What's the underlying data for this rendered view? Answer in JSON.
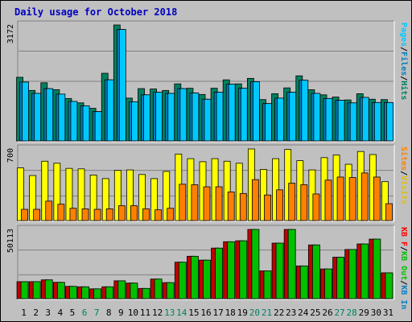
{
  "chart_data": [
    {
      "type": "bar",
      "title": "Daily usage for October 2018",
      "ylabel_parts": [
        {
          "text": "Pages",
          "color": "#00c8ff"
        },
        {
          "text": "/",
          "color": "#000000"
        },
        {
          "text": "Files",
          "color": "#0080c0"
        },
        {
          "text": "/",
          "color": "#000000"
        },
        {
          "text": "Hits",
          "color": "#008060"
        }
      ],
      "ytick": "3172",
      "ymax": 3172,
      "categories": [
        "1",
        "2",
        "3",
        "4",
        "5",
        "6",
        "7",
        "8",
        "9",
        "10",
        "11",
        "12",
        "13",
        "14",
        "15",
        "16",
        "17",
        "18",
        "19",
        "20",
        "21",
        "22",
        "23",
        "24",
        "25",
        "26",
        "27",
        "28",
        "29",
        "30",
        "31"
      ],
      "weekend_days": [
        "6",
        "7",
        "13",
        "14",
        "20",
        "21",
        "27",
        "28"
      ],
      "series": [
        {
          "name": "Hits",
          "color": "#008060",
          "values": [
            1740,
            1380,
            1590,
            1400,
            1160,
            1040,
            890,
            1850,
            3172,
            1170,
            1430,
            1420,
            1380,
            1560,
            1440,
            1270,
            1440,
            1670,
            1560,
            1710,
            1130,
            1290,
            1450,
            1780,
            1400,
            1260,
            1200,
            1120,
            1290,
            1140,
            1130
          ]
        },
        {
          "name": "Files",
          "color": "#0080c0",
          "values": [
            1610,
            1300,
            1430,
            1280,
            1080,
            960,
            800,
            1670,
            3050,
            1070,
            1260,
            1330,
            1300,
            1430,
            1310,
            1140,
            1330,
            1550,
            1440,
            1620,
            1020,
            1170,
            1330,
            1660,
            1300,
            1160,
            1110,
            1040,
            1190,
            1050,
            1050
          ]
        },
        {
          "name": "Pages",
          "color": "#00c8ff",
          "values": [
            1610,
            1300,
            1430,
            1280,
            1080,
            960,
            800,
            1670,
            3050,
            1070,
            1260,
            1330,
            1300,
            1430,
            1310,
            1140,
            1330,
            1550,
            1440,
            1620,
            1020,
            1170,
            1330,
            1660,
            1300,
            1160,
            1110,
            1040,
            1190,
            1050,
            1050
          ]
        }
      ]
    },
    {
      "type": "bar",
      "ylabel_parts": [
        {
          "text": "Sites",
          "color": "#ff8000"
        },
        {
          "text": "/",
          "color": "#000000"
        },
        {
          "text": "Visits",
          "color": "#e0c000"
        }
      ],
      "ytick": "700",
      "ymax": 700,
      "series": [
        {
          "name": "Visits",
          "color": "#ffff00",
          "values": [
            515,
            440,
            580,
            560,
            510,
            505,
            445,
            410,
            490,
            495,
            450,
            410,
            480,
            650,
            605,
            575,
            605,
            580,
            560,
            700,
            500,
            605,
            695,
            585,
            495,
            615,
            640,
            550,
            675,
            645,
            380
          ]
        },
        {
          "name": "Sites",
          "color": "#ff8000",
          "values": [
            110,
            110,
            190,
            160,
            120,
            115,
            110,
            115,
            145,
            145,
            115,
            105,
            120,
            355,
            350,
            330,
            330,
            280,
            265,
            400,
            250,
            300,
            365,
            350,
            260,
            395,
            425,
            420,
            465,
            425,
            165
          ]
        }
      ]
    },
    {
      "type": "bar",
      "ylabel_parts": [
        {
          "text": "KB F",
          "color": "#ff0000"
        },
        {
          "text": "/",
          "color": "#000000"
        },
        {
          "text": "KB Out",
          "color": "#00c000"
        },
        {
          "text": "/",
          "color": "#000000"
        },
        {
          "text": "KB In",
          "color": "#0080c0"
        }
      ],
      "ytick": "50113",
      "ymax": 50113,
      "series": [
        {
          "name": "KB F",
          "color": "#c00000",
          "values": [
            12300,
            12300,
            13600,
            11800,
            8900,
            8600,
            7100,
            8600,
            12900,
            11300,
            7400,
            14200,
            11600,
            26400,
            30700,
            27900,
            36600,
            41200,
            41900,
            50113,
            20100,
            40200,
            50113,
            23700,
            38900,
            21500,
            30000,
            35600,
            39600,
            43100,
            18700
          ]
        },
        {
          "name": "KB Out",
          "color": "#00c000",
          "values": [
            12300,
            12300,
            13600,
            11800,
            8900,
            8600,
            7100,
            8600,
            12900,
            11300,
            7400,
            14200,
            11600,
            26400,
            30700,
            27900,
            36600,
            41200,
            41900,
            50113,
            20100,
            40200,
            50113,
            23700,
            38900,
            21500,
            30000,
            35600,
            39600,
            43100,
            18700
          ]
        }
      ]
    }
  ]
}
